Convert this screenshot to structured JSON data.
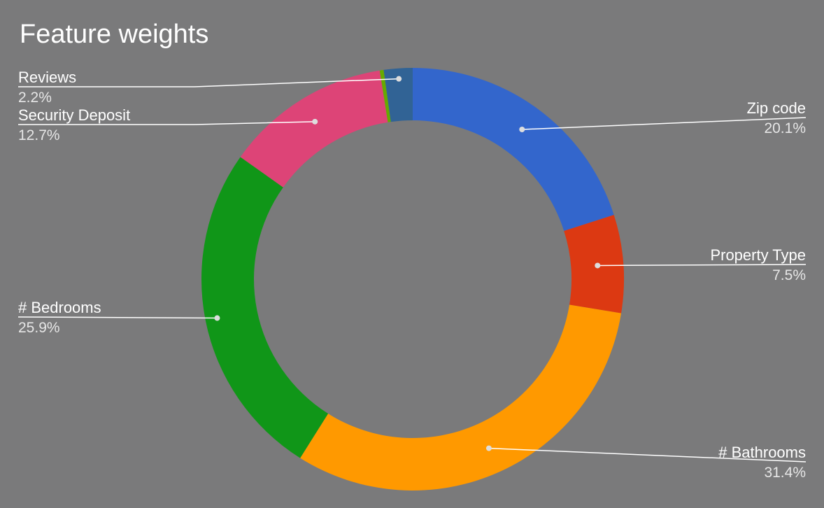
{
  "chart_data": {
    "type": "pie",
    "donut": true,
    "title": "Feature weights",
    "slices": [
      {
        "label": "Zip code",
        "value": 20.1,
        "value_label": "20.1%",
        "color": "#3366cc"
      },
      {
        "label": "Property Type",
        "value": 7.5,
        "value_label": "7.5%",
        "color": "#dc3912"
      },
      {
        "label": "# Bathrooms",
        "value": 31.4,
        "value_label": "31.4%",
        "color": "#ff9900"
      },
      {
        "label": "# Bedrooms",
        "value": 25.9,
        "value_label": "25.9%",
        "color": "#109618"
      },
      {
        "label": "Security Deposit",
        "value": 12.7,
        "value_label": "12.7%",
        "color": "#dd4477"
      },
      {
        "label": "",
        "value": 0.3,
        "value_label": "",
        "color": "#66aa00"
      },
      {
        "label": "Reviews",
        "value": 2.2,
        "value_label": "2.2%",
        "color": "#316395"
      }
    ],
    "start_angle": "top, clockwise",
    "legend": "labeled slices with leader lines"
  }
}
